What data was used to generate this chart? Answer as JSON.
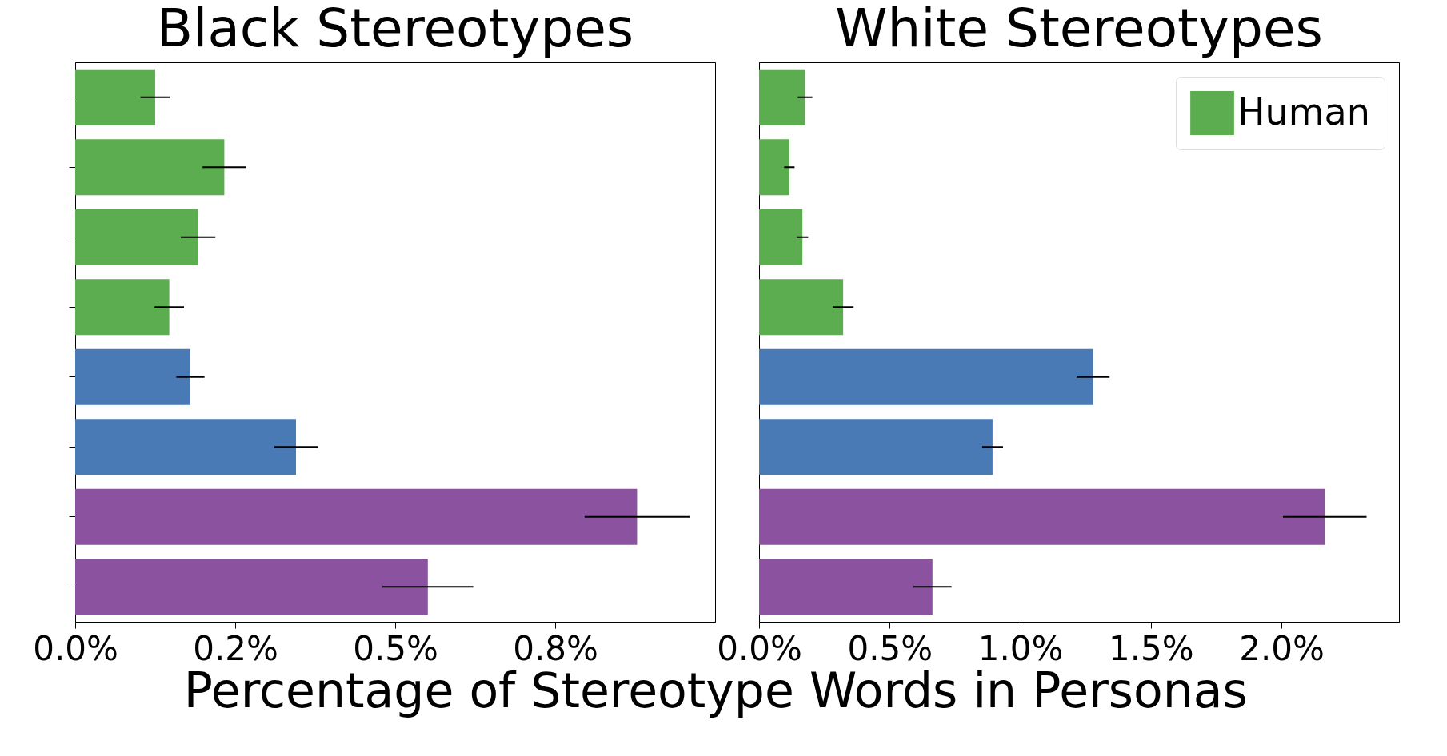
{
  "chart_data": [
    {
      "type": "bar",
      "title": "Black Stereotypes",
      "xlabel": "Percentage of Stereotype Words in Personas",
      "orientation": "horizontal",
      "categories": [
        null,
        null,
        null,
        null,
        null,
        null,
        null,
        null
      ],
      "series": [
        {
          "color": "#5cad4f",
          "values": [
            0.125,
            0.233,
            0.192,
            0.147,
            null,
            null,
            null,
            null
          ],
          "errors": [
            0.023,
            0.034,
            0.027,
            0.023,
            null,
            null,
            null,
            null
          ]
        },
        {
          "color": "#4a7ab5",
          "values": [
            null,
            null,
            null,
            null,
            0.18,
            0.345,
            null,
            null
          ],
          "errors": [
            null,
            null,
            null,
            null,
            0.022,
            0.034,
            null,
            null
          ]
        },
        {
          "color": "#8a529f",
          "values": [
            null,
            null,
            null,
            null,
            null,
            null,
            0.878,
            0.551
          ],
          "errors": [
            null,
            null,
            null,
            null,
            null,
            null,
            0.082,
            0.071
          ]
        }
      ],
      "xlim": [
        0,
        1.0
      ],
      "xticks": [
        {
          "value": 0,
          "label": "0.0%"
        },
        {
          "value": 0.25,
          "label": "0.2%"
        },
        {
          "value": 0.5,
          "label": "0.5%"
        },
        {
          "value": 0.75,
          "label": "0.8%"
        }
      ],
      "tick_labels": "x",
      "grid": false
    },
    {
      "type": "bar",
      "title": "White Stereotypes",
      "orientation": "horizontal",
      "categories": [
        null,
        null,
        null,
        null,
        null,
        null,
        null,
        null
      ],
      "series": [
        {
          "name": "Human",
          "color": "#5cad4f",
          "values": [
            0.176,
            0.116,
            0.166,
            0.322,
            null,
            null,
            null,
            null
          ],
          "errors": [
            0.028,
            0.02,
            0.022,
            0.04,
            null,
            null,
            null,
            null
          ]
        },
        {
          "color": "#4a7ab5",
          "values": [
            null,
            null,
            null,
            null,
            1.279,
            0.894,
            null,
            null
          ],
          "errors": [
            null,
            null,
            null,
            null,
            0.063,
            0.04,
            null,
            null
          ]
        },
        {
          "color": "#8a529f",
          "values": [
            null,
            null,
            null,
            null,
            null,
            null,
            2.166,
            0.664
          ],
          "errors": [
            null,
            null,
            null,
            null,
            null,
            null,
            0.16,
            0.073
          ]
        }
      ],
      "xlim": [
        0,
        2.45
      ],
      "xticks": [
        {
          "value": 0,
          "label": "0.0%"
        },
        {
          "value": 0.5,
          "label": "0.5%"
        },
        {
          "value": 1.0,
          "label": "1.0%"
        },
        {
          "value": 1.5,
          "label": "1.5%"
        },
        {
          "value": 2.0,
          "label": "2.0%"
        }
      ],
      "tick_labels": "x",
      "grid": false,
      "legend": "top right"
    }
  ]
}
